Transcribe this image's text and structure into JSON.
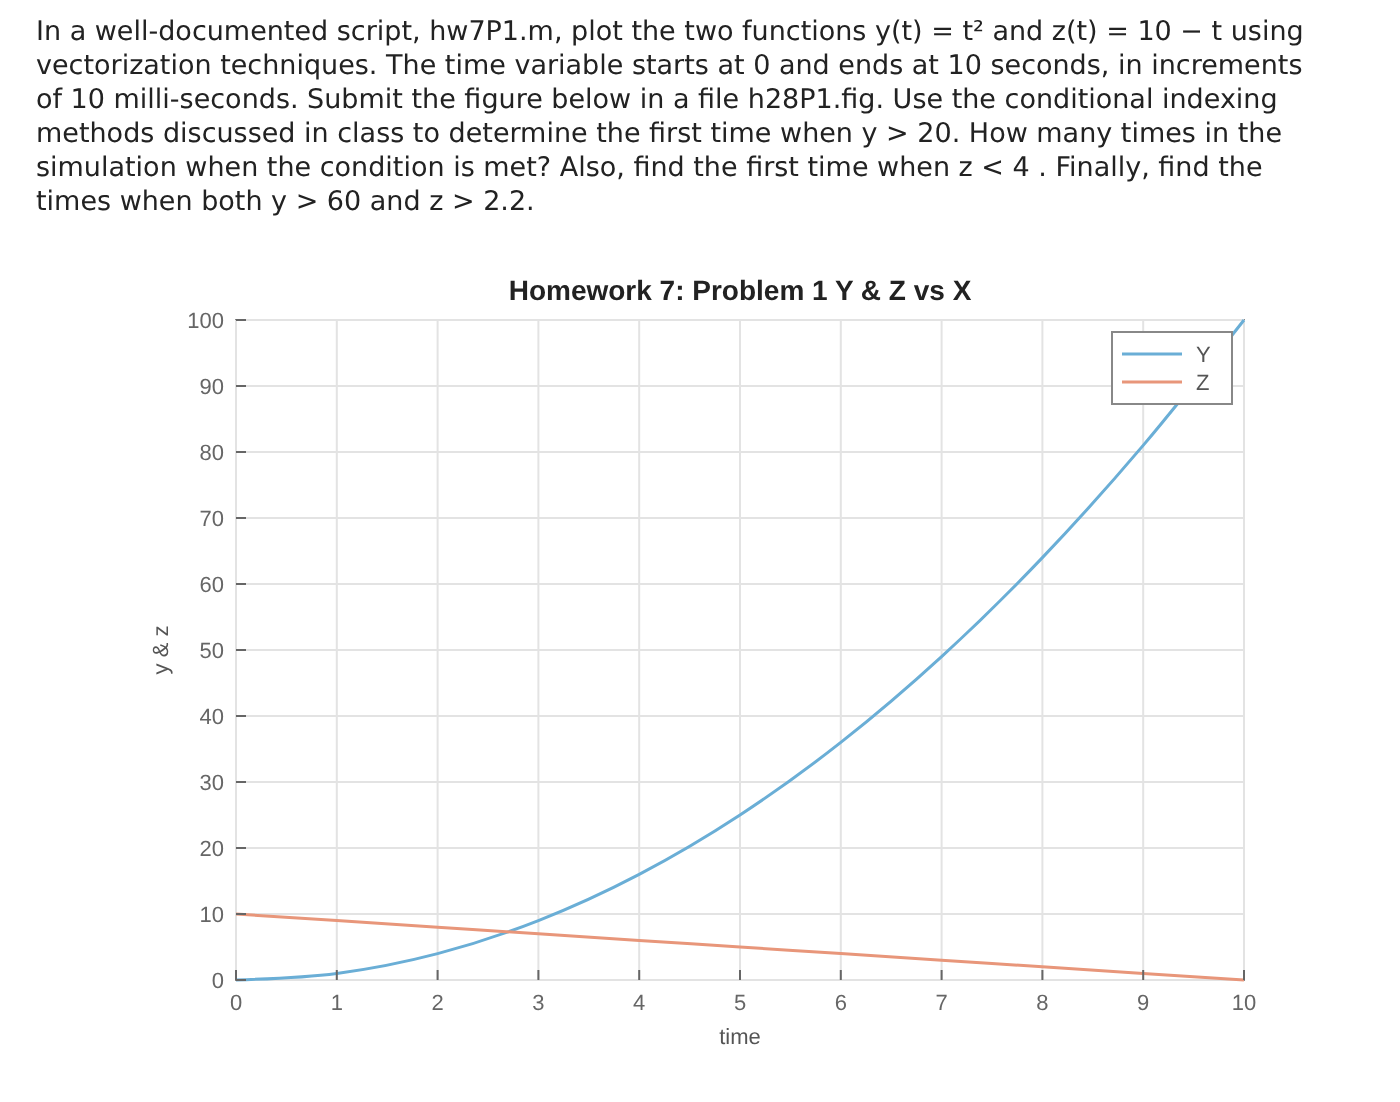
{
  "chart_data": {
    "type": "line",
    "title": "Homework 7: Problem 1 Y & Z vs X",
    "xlabel": "time",
    "ylabel": "y & z",
    "annotations": [
      "In a well-documented script, hw7P1.m, plot the two functions y(t) = t² and z(t) = 10 − t using vectorization techniques. The time variable starts at 0 and ends at 10 seconds, in increments of 10 milli-seconds. Submit the figure below in a file h28P1.fig. Use the conditional indexing methods discussed in class to determine the first time when y > 20. How many times in the simulation when the condition is met? Also, find the first time when z < 4 . Finally, find the times when both y > 60 and z > 2.2."
    ],
    "x": [
      0,
      1,
      2,
      3,
      4,
      5,
      6,
      7,
      8,
      9,
      10
    ],
    "series": [
      {
        "name": "Y",
        "color": "#6aaed6",
        "values": [
          0,
          1,
          4,
          9,
          16,
          25,
          36,
          49,
          64,
          81,
          100
        ]
      },
      {
        "name": "Z",
        "color": "#e8967a",
        "values": [
          10,
          9,
          8,
          7,
          6,
          5,
          4,
          3,
          2,
          1,
          0
        ]
      }
    ],
    "xlim": [
      0,
      10
    ],
    "xticks": [
      0,
      1,
      2,
      3,
      4,
      5,
      6,
      7,
      8,
      9,
      10
    ],
    "ylim": [
      0,
      100
    ],
    "yticks": [
      0,
      10,
      20,
      30,
      40,
      50,
      60,
      70,
      80,
      90,
      100
    ],
    "grid": true,
    "legend": "top right",
    "marker": "none",
    "line_style": "solid"
  }
}
